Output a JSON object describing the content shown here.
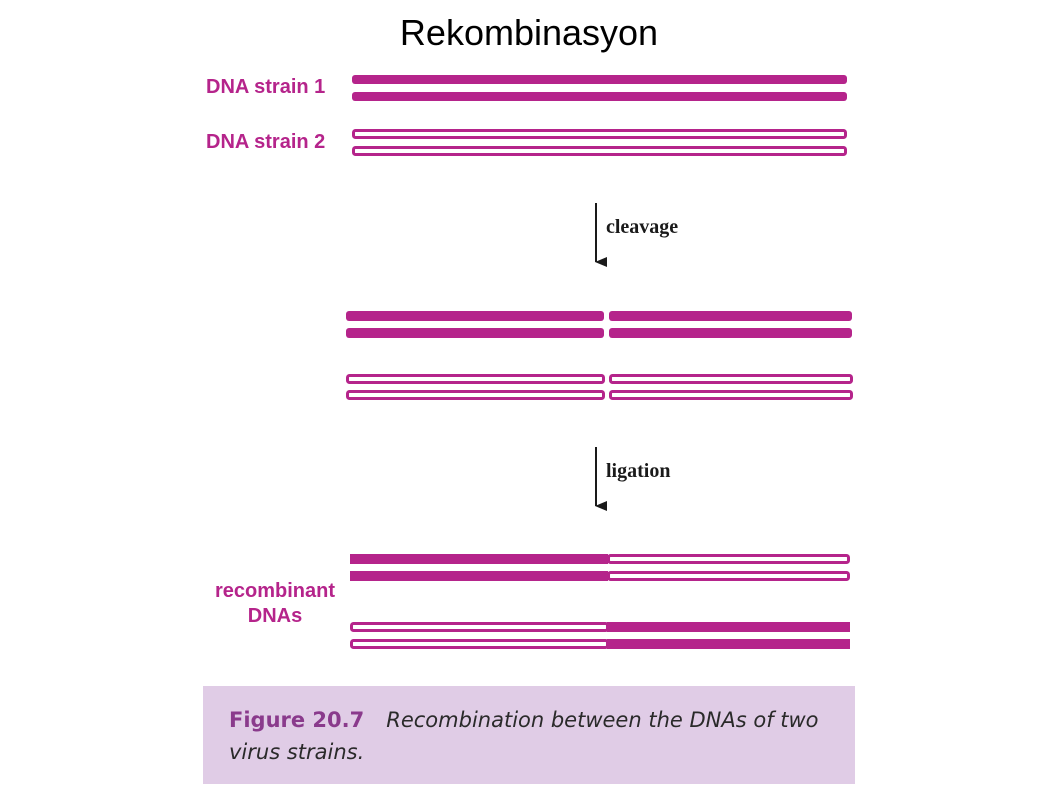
{
  "title": "Rekombinasyon",
  "labels": {
    "strain1": "DNA strain 1",
    "strain2": "DNA strain 2",
    "recombinant_line1": "recombinant",
    "recombinant_line2": "DNAs"
  },
  "steps": {
    "cleavage": "cleavage",
    "ligation": "ligation"
  },
  "caption": {
    "figure_number": "Figure 20.7",
    "text": "Recombination between the DNAs of two virus strains."
  },
  "colors": {
    "strand": "#b5248b",
    "caption_bg": "#e0cce6",
    "caption_number": "#8a3a8c"
  }
}
